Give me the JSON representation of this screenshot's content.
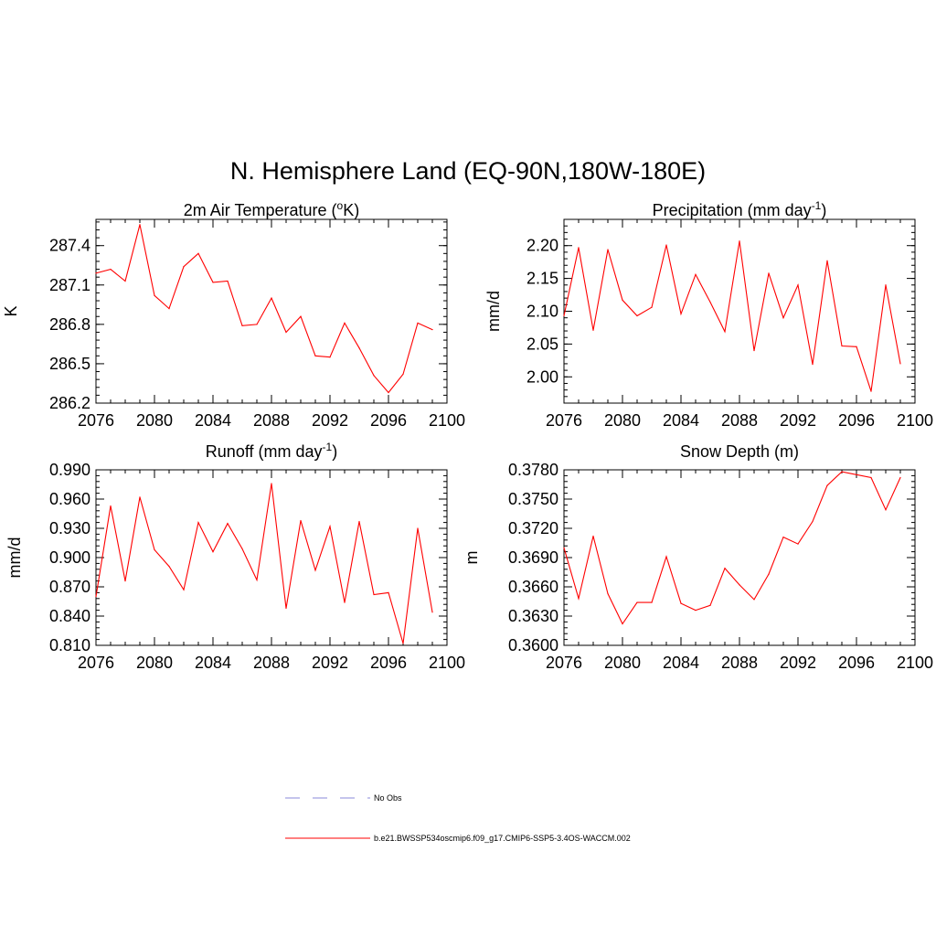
{
  "page_title": "N. Hemisphere Land (EQ-90N,180W-180E)",
  "colors": {
    "series": "#ff0000",
    "obs": "#a0a0e0",
    "axis": "#000000"
  },
  "legend": {
    "obs_label": "No Obs",
    "model_label": "b.e21.BWSSP534oscmip6.f09_g17.CMIP6-SSP5-3.4OS-WACCM.002"
  },
  "chart_data": [
    {
      "id": "temperature",
      "type": "line",
      "title_main": "2m Air Temperature (",
      "title_sup": "o",
      "title_end": "K)",
      "ylabel": "K",
      "xlim": [
        2076,
        2100
      ],
      "ylim": [
        286.2,
        287.6
      ],
      "x_ticks": [
        2076,
        2080,
        2084,
        2088,
        2092,
        2096,
        2100
      ],
      "x_tick_labels": [
        "2076",
        "2080",
        "2084",
        "2088",
        "2092",
        "2096",
        "2100"
      ],
      "y_ticks": [
        286.2,
        286.5,
        286.8,
        287.1,
        287.4
      ],
      "y_tick_labels": [
        "286.2",
        "286.5",
        "286.8",
        "287.1",
        "287.4"
      ],
      "x": [
        2076,
        2077,
        2078,
        2079,
        2080,
        2081,
        2082,
        2083,
        2084,
        2085,
        2086,
        2087,
        2088,
        2089,
        2090,
        2091,
        2092,
        2093,
        2094,
        2095,
        2096,
        2097,
        2098,
        2099
      ],
      "values": [
        287.19,
        287.22,
        287.13,
        287.56,
        287.02,
        286.92,
        287.24,
        287.34,
        287.12,
        287.13,
        286.79,
        286.8,
        287.0,
        286.74,
        286.86,
        286.56,
        286.55,
        286.81,
        286.62,
        286.41,
        286.28,
        286.42,
        286.81,
        286.76
      ]
    },
    {
      "id": "precipitation",
      "type": "line",
      "title_main": "Precipitation (mm day",
      "title_sup": "-1",
      "title_end": ")",
      "ylabel": "mm/d",
      "xlim": [
        2076,
        2100
      ],
      "ylim": [
        1.96,
        2.24
      ],
      "x_ticks": [
        2076,
        2080,
        2084,
        2088,
        2092,
        2096,
        2100
      ],
      "x_tick_labels": [
        "2076",
        "2080",
        "2084",
        "2088",
        "2092",
        "2096",
        "2100"
      ],
      "y_ticks": [
        2.0,
        2.05,
        2.1,
        2.15,
        2.2
      ],
      "y_tick_labels": [
        "2.00",
        "2.05",
        "2.10",
        "2.15",
        "2.20"
      ],
      "x": [
        2076,
        2077,
        2078,
        2079,
        2080,
        2081,
        2082,
        2083,
        2084,
        2085,
        2086,
        2087,
        2088,
        2089,
        2090,
        2091,
        2092,
        2093,
        2094,
        2095,
        2096,
        2097,
        2098,
        2099
      ],
      "values": [
        2.093,
        2.197,
        2.071,
        2.194,
        2.117,
        2.093,
        2.106,
        2.201,
        2.096,
        2.156,
        2.114,
        2.069,
        2.207,
        2.04,
        2.158,
        2.09,
        2.14,
        2.019,
        2.177,
        2.047,
        2.046,
        1.978,
        2.14,
        2.02
      ]
    },
    {
      "id": "runoff",
      "type": "line",
      "title_main": "Runoff (mm day",
      "title_sup": "-1",
      "title_end": ")",
      "ylabel": "mm/d",
      "xlim": [
        2076,
        2100
      ],
      "ylim": [
        0.81,
        0.99
      ],
      "x_ticks": [
        2076,
        2080,
        2084,
        2088,
        2092,
        2096,
        2100
      ],
      "x_tick_labels": [
        "2076",
        "2080",
        "2084",
        "2088",
        "2092",
        "2096",
        "2100"
      ],
      "y_ticks": [
        0.81,
        0.84,
        0.87,
        0.9,
        0.93,
        0.96,
        0.99
      ],
      "y_tick_labels": [
        "0.810",
        "0.840",
        "0.870",
        "0.900",
        "0.930",
        "0.960",
        "0.990"
      ],
      "x": [
        2076,
        2077,
        2078,
        2079,
        2080,
        2081,
        2082,
        2083,
        2084,
        2085,
        2086,
        2087,
        2088,
        2089,
        2090,
        2091,
        2092,
        2093,
        2094,
        2095,
        2096,
        2097,
        2098,
        2099
      ],
      "values": [
        0.86,
        0.953,
        0.876,
        0.962,
        0.908,
        0.891,
        0.867,
        0.936,
        0.906,
        0.935,
        0.909,
        0.877,
        0.976,
        0.848,
        0.938,
        0.887,
        0.932,
        0.854,
        0.937,
        0.862,
        0.864,
        0.812,
        0.93,
        0.844
      ]
    },
    {
      "id": "snowdepth",
      "type": "line",
      "title_main": "Snow Depth (m)",
      "title_sup": "",
      "title_end": "",
      "ylabel": "m",
      "xlim": [
        2076,
        2100
      ],
      "ylim": [
        0.36,
        0.378
      ],
      "x_ticks": [
        2076,
        2080,
        2084,
        2088,
        2092,
        2096,
        2100
      ],
      "x_tick_labels": [
        "2076",
        "2080",
        "2084",
        "2088",
        "2092",
        "2096",
        "2100"
      ],
      "y_ticks": [
        0.36,
        0.363,
        0.366,
        0.369,
        0.372,
        0.375,
        0.378
      ],
      "y_tick_labels": [
        "0.3600",
        "0.3630",
        "0.3660",
        "0.3690",
        "0.3720",
        "0.3750",
        "0.3780"
      ],
      "x": [
        2076,
        2077,
        2078,
        2079,
        2080,
        2081,
        2082,
        2083,
        2084,
        2085,
        2086,
        2087,
        2088,
        2089,
        2090,
        2091,
        2092,
        2093,
        2094,
        2095,
        2096,
        2097,
        2098,
        2099
      ],
      "values": [
        0.37,
        0.3648,
        0.3712,
        0.3653,
        0.3622,
        0.3644,
        0.3644,
        0.3691,
        0.3643,
        0.3636,
        0.3641,
        0.3679,
        0.3662,
        0.3647,
        0.3673,
        0.3711,
        0.3704,
        0.3727,
        0.3764,
        0.3778,
        0.3775,
        0.3772,
        0.3739,
        0.3772
      ]
    }
  ]
}
